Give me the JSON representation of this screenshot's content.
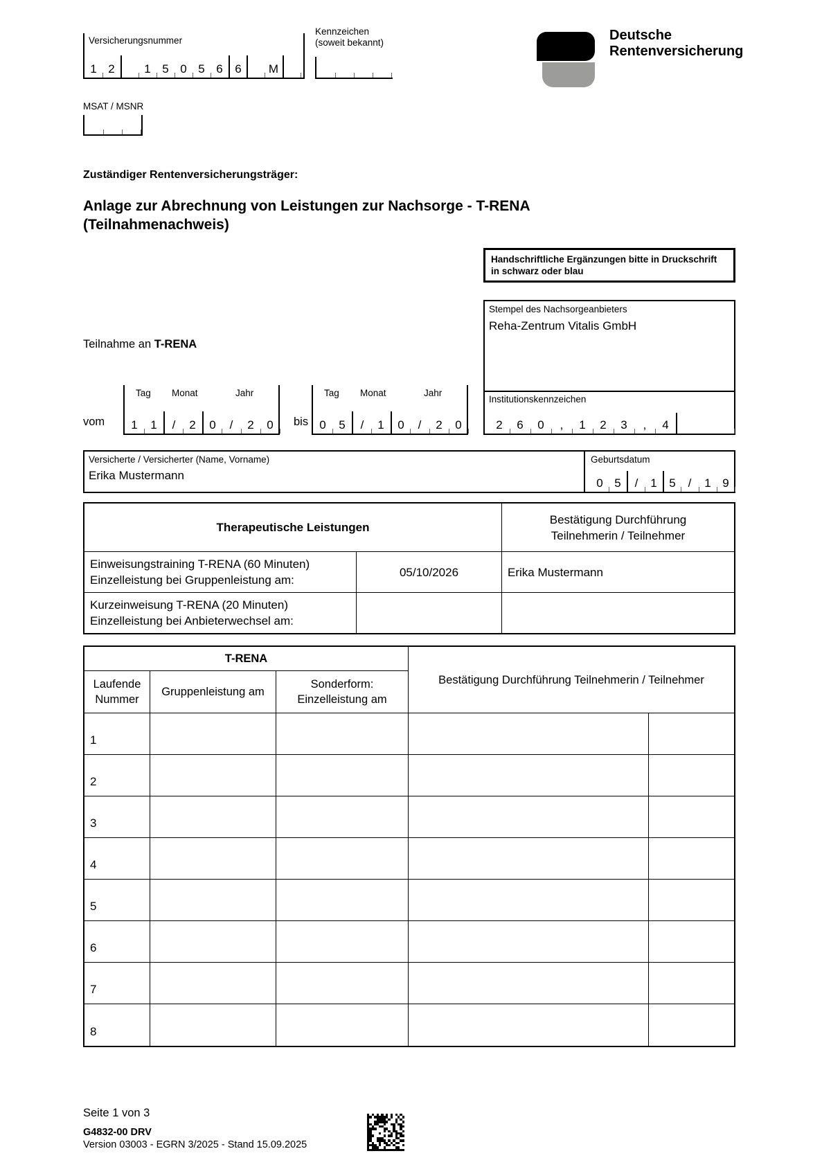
{
  "header": {
    "versicherungsnummer": {
      "label": "Versicherungsnummer",
      "cells": [
        "1",
        "2",
        "",
        "1",
        "5",
        "0",
        "5",
        "6",
        "6",
        "",
        "M",
        ""
      ]
    },
    "kennzeichen": {
      "label_line1": "Kennzeichen",
      "label_line2": "(soweit bekannt)"
    },
    "msat": {
      "label": "MSAT / MSNR"
    },
    "logo": {
      "line1": "Deutsche",
      "line2": "Rentenversicherung",
      "black": "#000000",
      "gray": "#9C9C9B"
    }
  },
  "traeger_label": "Zuständiger Rentenversicherungsträger:",
  "title_line1": "Anlage zur Abrechnung von Leistungen zur Nachsorge - T-RENA",
  "title_line2": "(Teilnahmenachweis)",
  "notice": {
    "line1": "Handschriftliche Ergänzungen bitte in Druckschrift",
    "line2": "in schwarz oder blau"
  },
  "stempel": {
    "label": "Stempel des Nachsorgeanbieters",
    "value": "Reha-Zentrum Vitalis GmbH"
  },
  "institutionskennzeichen": {
    "label": "Institutionskennzeichen",
    "cells": [
      "2",
      "6",
      "0",
      ",",
      "1",
      "2",
      "3",
      ",",
      "4"
    ]
  },
  "teilnahme": {
    "prefix": "Teilnahme an ",
    "program": "T-RENA"
  },
  "period": {
    "vom_label": "vom",
    "bis_label": "bis",
    "col_labels": [
      "Tag",
      "Monat",
      "Jahr"
    ],
    "vom_cells": [
      "1",
      "1",
      "/",
      "2",
      "0",
      "/",
      "2",
      "0"
    ],
    "bis_cells": [
      "0",
      "5",
      "/",
      "1",
      "0",
      "/",
      "2",
      "0"
    ]
  },
  "insured": {
    "label": "Versicherte / Versicherter (Name, Vorname)",
    "name": "Erika Mustermann",
    "birth_label": "Geburtsdatum",
    "birth_cells": [
      "0",
      "5",
      "/",
      "1",
      "5",
      "/",
      "1",
      "9"
    ]
  },
  "therapy_table": {
    "header_left": "Therapeutische Leistungen",
    "header_right_line1": "Bestätigung Durchführung",
    "header_right_line2": "Teilnehmerin / Teilnehmer",
    "rows": [
      {
        "label_line1": "Einweisungstraining T-RENA (60 Minuten)",
        "label_line2": "Einzelleistung bei Gruppenleistung am:",
        "date": "05/10/2026",
        "confirmation": "Erika Mustermann"
      },
      {
        "label_line1": "Kurzeinweisung T-RENA (20 Minuten)",
        "label_line2": "Einzelleistung bei Anbieterwechsel am:",
        "date": "",
        "confirmation": ""
      }
    ]
  },
  "trena_table": {
    "title": "T-RENA",
    "col1_line1": "Laufende",
    "col1_line2": "Nummer",
    "col2": "Gruppenleistung am",
    "col3_line1": "Sonderform:",
    "col3_line2": "Einzelleistung am",
    "col4": "Bestätigung Durchführung Teilnehmerin / Teilnehmer",
    "row_numbers": [
      "1",
      "2",
      "3",
      "4",
      "5",
      "6",
      "7",
      "8"
    ]
  },
  "footer": {
    "page": "Seite 1 von 3",
    "form_code": "G4832-00 DRV",
    "version": "Version 03003 - EGRN 3/2025 - Stand 15.09.2025",
    "barcode_icon": "datamatrix"
  }
}
